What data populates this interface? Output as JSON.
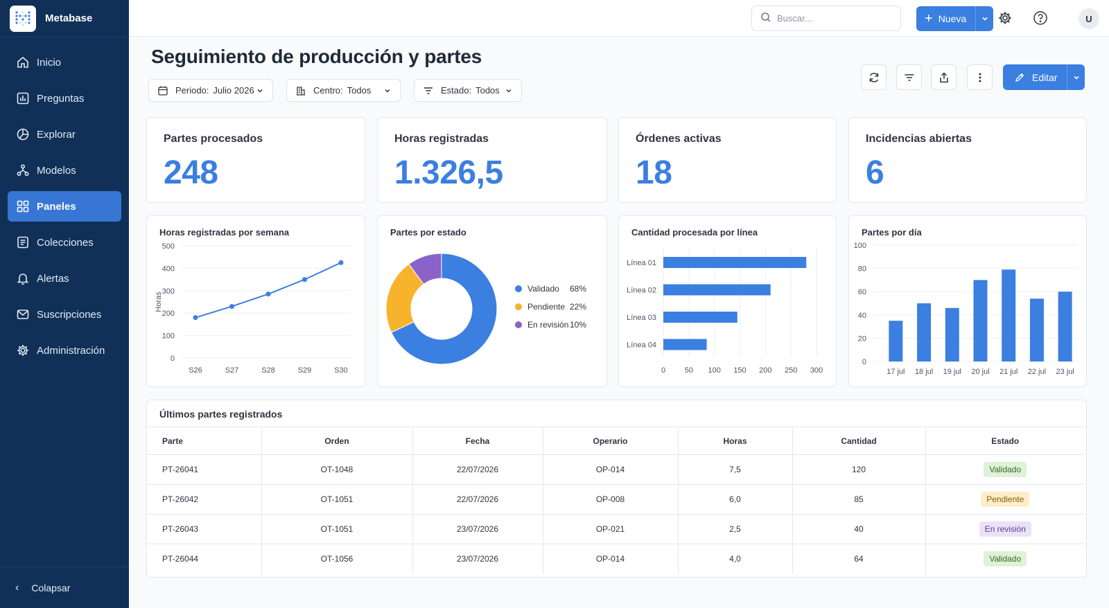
{
  "app": {
    "name": "Metabase"
  },
  "sidebar": {
    "items": [
      {
        "label": "Inicio",
        "icon": "home-icon",
        "active": false
      },
      {
        "label": "Preguntas",
        "icon": "chart-icon",
        "active": false
      },
      {
        "label": "Explorar",
        "icon": "explore-icon",
        "active": false
      },
      {
        "label": "Modelos",
        "icon": "models-icon",
        "active": false
      },
      {
        "label": "Paneles",
        "icon": "dashboard-icon",
        "active": true
      },
      {
        "label": "Colecciones",
        "icon": "collection-icon",
        "active": false
      },
      {
        "label": "Alertas",
        "icon": "bell-icon",
        "active": false
      },
      {
        "label": "Suscripciones",
        "icon": "mail-icon",
        "active": false
      },
      {
        "label": "Administración",
        "icon": "gear-icon",
        "active": false
      }
    ],
    "collapse_label": "Colapsar"
  },
  "topbar": {
    "search_placeholder": "Buscar...",
    "new_label": "Nueva",
    "avatar_initial": "U"
  },
  "page": {
    "title": "Seguimiento de producción y partes",
    "edit_label": "Editar"
  },
  "filters": [
    {
      "label": "Periodo:",
      "value": "Julio 2026"
    },
    {
      "label": "Centro:",
      "value": "Todos"
    },
    {
      "label": "Estado:",
      "value": "Todos"
    }
  ],
  "kpis": [
    {
      "label": "Partes procesados",
      "value": "248"
    },
    {
      "label": "Horas registradas",
      "value": "1.326,5"
    },
    {
      "label": "Órdenes activas",
      "value": "18"
    },
    {
      "label": "Incidencias abiertas",
      "value": "6"
    }
  ],
  "colors": {
    "accent": "#3b7fe0",
    "validado": "#3b7fe0",
    "pendiente": "#f7b32b",
    "revision": "#8b62c9",
    "sidebar": "#103057"
  },
  "chart_data": [
    {
      "type": "line",
      "title": "Horas registradas por semana",
      "ylabel": "Horas",
      "x": [
        "S26",
        "S27",
        "S28",
        "S29",
        "S30"
      ],
      "values": [
        180,
        230,
        285,
        350,
        425
      ],
      "ylim": [
        0,
        500
      ],
      "yticks": [
        0,
        100,
        200,
        300,
        400,
        500
      ],
      "grid": true
    },
    {
      "type": "pie",
      "title": "Partes por estado",
      "categories": [
        "Validado",
        "Pendiente",
        "En revisión"
      ],
      "values": [
        68,
        22,
        10
      ],
      "value_labels": [
        "68%",
        "22%",
        "10%"
      ],
      "legend": "right"
    },
    {
      "type": "bar",
      "orientation": "horizontal",
      "title": "Cantidad procesada por línea",
      "categories": [
        "Línea 01",
        "Línea 02",
        "Línea 03",
        "Línea 04"
      ],
      "values": [
        280,
        210,
        145,
        85
      ],
      "xlim": [
        0,
        300
      ],
      "xticks": [
        0,
        50,
        100,
        150,
        200,
        250,
        300
      ],
      "grid": true
    },
    {
      "type": "bar",
      "title": "Partes por día",
      "categories": [
        "17 jul",
        "18 jul",
        "19 jul",
        "20 jul",
        "21 jul",
        "22 jul",
        "23 jul"
      ],
      "values": [
        35,
        50,
        46,
        70,
        79,
        54,
        60
      ],
      "ylim": [
        0,
        100
      ],
      "yticks": [
        0,
        20,
        40,
        60,
        80,
        100
      ],
      "grid": true
    }
  ],
  "table": {
    "title": "Últimos partes registrados",
    "columns": [
      "Parte",
      "Orden",
      "Fecha",
      "Operario",
      "Horas",
      "Cantidad",
      "Estado"
    ],
    "rows": [
      {
        "parte": "PT-26041",
        "orden": "OT-1048",
        "fecha": "22/07/2026",
        "operario": "OP-014",
        "horas": "7,5",
        "cantidad": "120",
        "estado": "Validado"
      },
      {
        "parte": "PT-26042",
        "orden": "OT-1051",
        "fecha": "22/07/2026",
        "operario": "OP-008",
        "horas": "6,0",
        "cantidad": "85",
        "estado": "Pendiente"
      },
      {
        "parte": "PT-26043",
        "orden": "OT-1051",
        "fecha": "23/07/2026",
        "operario": "OP-021",
        "horas": "2,5",
        "cantidad": "40",
        "estado": "En revisión"
      },
      {
        "parte": "PT-26044",
        "orden": "OT-1056",
        "fecha": "23/07/2026",
        "operario": "OP-014",
        "horas": "4,0",
        "cantidad": "64",
        "estado": "Validado"
      }
    ]
  }
}
